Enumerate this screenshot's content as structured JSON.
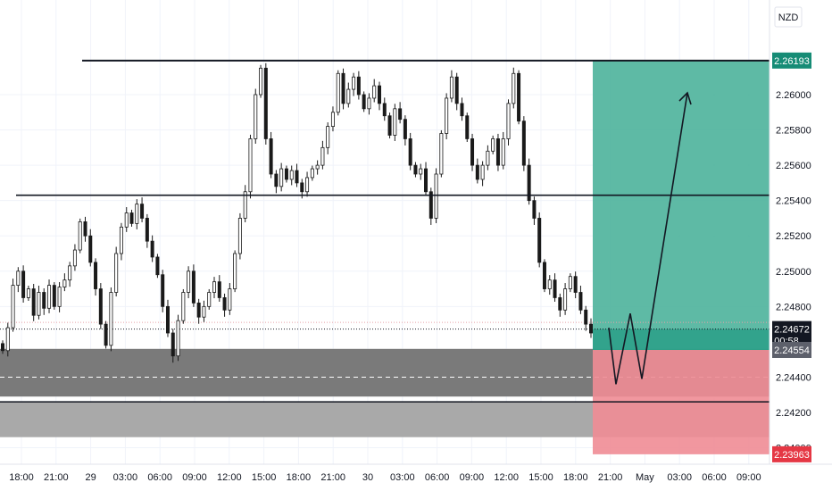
{
  "chart_data": {
    "type": "candlestick",
    "symbol_currency": "NZD",
    "x_ticks": [
      "18:00",
      "21:00",
      "29",
      "03:00",
      "06:00",
      "09:00",
      "12:00",
      "15:00",
      "18:00",
      "21:00",
      "30",
      "03:00",
      "06:00",
      "09:00",
      "12:00",
      "15:00",
      "18:00",
      "21:00",
      "May",
      "03:00",
      "06:00",
      "09:00"
    ],
    "y_ticks": [
      "2.26000",
      "2.25800",
      "2.25600",
      "2.25400",
      "2.25200",
      "2.25000",
      "2.24800",
      "2.24400",
      "2.24200",
      "2.24000"
    ],
    "ylim": [
      2.2387,
      2.2638
    ],
    "price_labels": {
      "target": "2.26193",
      "current": "2.24672",
      "countdown": "00:58",
      "entry": "2.24554",
      "stop": "2.23963"
    },
    "horizontal_levels": [
      2.26193,
      2.2543,
      2.2426
    ],
    "zones": [
      {
        "name": "demand-zone-upper",
        "top": 2.2456,
        "bottom": 2.2429
      },
      {
        "name": "demand-zone-lower",
        "top": 2.2426,
        "bottom": 2.2406
      }
    ],
    "position": {
      "type": "long",
      "entry": 2.24554,
      "target": 2.26193,
      "stop": 2.23963
    },
    "projected_path": [
      2.2468,
      2.2436,
      2.2476,
      2.2439,
      2.2601
    ],
    "ohlc_path": [
      2.2455,
      2.2468,
      2.2492,
      2.25,
      2.2485,
      2.249,
      2.2475,
      2.2488,
      2.2479,
      2.2492,
      2.248,
      2.2491,
      2.2495,
      2.2503,
      2.2512,
      2.2528,
      2.252,
      2.2505,
      2.249,
      2.247,
      2.2458,
      2.2488,
      2.251,
      2.2525,
      2.2533,
      2.2527,
      2.2538,
      2.253,
      2.2517,
      2.2508,
      2.2498,
      2.248,
      2.2465,
      2.2452,
      2.2472,
      2.2488,
      2.25,
      2.2482,
      2.2474,
      2.248,
      2.2488,
      2.2494,
      2.2485,
      2.2478,
      2.249,
      2.251,
      2.253,
      2.2545,
      2.2575,
      2.26,
      2.2615,
      2.2575,
      2.2555,
      2.2548,
      2.2558,
      2.2552,
      2.2557,
      2.255,
      2.2545,
      2.2553,
      2.2558,
      2.256,
      2.257,
      2.2582,
      2.259,
      2.2612,
      2.2595,
      2.2603,
      2.261,
      2.26,
      2.2592,
      2.2598,
      2.2605,
      2.2595,
      2.2588,
      2.2577,
      2.2592,
      2.2586,
      2.2575,
      2.256,
      2.2555,
      2.2558,
      2.2545,
      2.253,
      2.2555,
      2.2578,
      2.2598,
      2.261,
      2.2595,
      2.2588,
      2.2575,
      2.256,
      2.2552,
      2.256,
      2.2568,
      2.2575,
      2.256,
      2.2575,
      2.2595,
      2.2612,
      2.2585,
      2.256,
      2.254,
      2.253,
      2.2505,
      2.249,
      2.2495,
      2.2485,
      2.2478,
      2.249,
      2.2497,
      2.2488,
      2.2478,
      2.247,
      2.2465
    ]
  }
}
